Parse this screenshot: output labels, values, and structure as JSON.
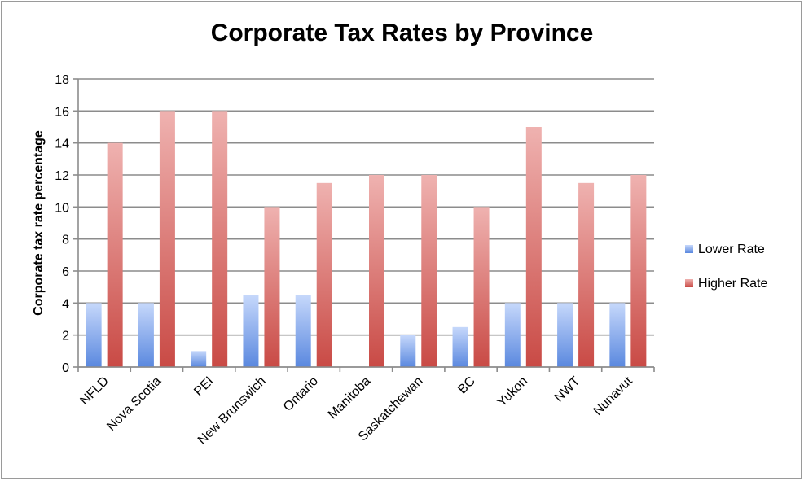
{
  "chart_data": {
    "type": "bar",
    "title": "Corporate Tax Rates by Province",
    "xlabel": "",
    "ylabel": "Corporate  tax rate percentage",
    "ylim": [
      0,
      18
    ],
    "yticks": [
      0,
      2,
      4,
      6,
      8,
      10,
      12,
      14,
      16,
      18
    ],
    "grid": true,
    "legend_position": "right",
    "categories": [
      "NFLD",
      "Nova Scotia",
      "PEI",
      "New Brunswich",
      "Ontario",
      "Manitoba",
      "Saskatchewan",
      "BC",
      "Yukon",
      "NWT",
      "Nunavut"
    ],
    "series": [
      {
        "name": "Lower Rate",
        "color": "#6f9ae8",
        "values": [
          4,
          4,
          1,
          4.5,
          4.5,
          0,
          2,
          2.5,
          4,
          4,
          4
        ]
      },
      {
        "name": "Higher Rate",
        "color": "#d9605c",
        "values": [
          14,
          16,
          16,
          10,
          11.5,
          12,
          12,
          10,
          15,
          11.5,
          12
        ]
      }
    ]
  }
}
